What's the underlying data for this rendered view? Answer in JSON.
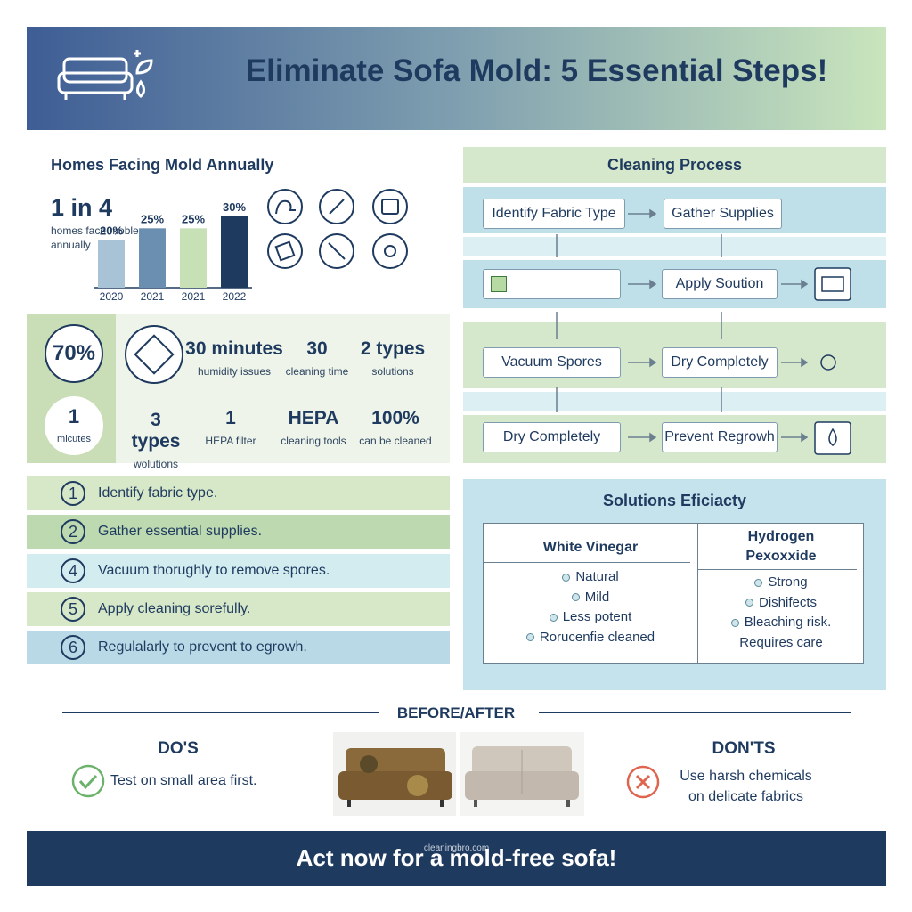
{
  "header": {
    "title": "Eliminate Sofa Mold: 5 Essential Steps!"
  },
  "stats": {
    "title": "Homes Facing Mold Annually",
    "headline": "1 in 4",
    "headline_note": "homes face rnoblems annually",
    "chart": {
      "type": "bar",
      "categories": [
        "2020",
        "2021",
        "2021",
        "2022"
      ],
      "values": [
        20,
        25,
        25,
        30
      ],
      "value_labels": [
        "20%",
        "25%",
        "25%",
        "30%"
      ],
      "colors": [
        "#a9c3d6",
        "#6a8fb0",
        "#c7e0b5",
        "#1f3a5f"
      ]
    }
  },
  "metrics": {
    "circle_main": "70%",
    "circle_small": {
      "value": "1",
      "label": "micutes"
    },
    "tiles": [
      {
        "value": "30 minutes",
        "label": "humidity issues"
      },
      {
        "value": "30",
        "label": "cleaning time"
      },
      {
        "value": "2 types",
        "label": "solutions"
      },
      {
        "value": "3 types",
        "label": "wolutions"
      },
      {
        "value": "1",
        "label": "HEPA filter"
      },
      {
        "value": "HEPA",
        "label": "cleaning tools"
      },
      {
        "value": "100%",
        "label": "can be cleaned"
      }
    ]
  },
  "steps": [
    {
      "num": "1",
      "text": "Identify fabric type."
    },
    {
      "num": "2",
      "text": "Gather essential supplies."
    },
    {
      "num": "4",
      "text": "Vacuum thorughly to remove spores."
    },
    {
      "num": "5",
      "text": "Apply cleaning sorefully."
    },
    {
      "num": "6",
      "text": "Regulalarly to prevent to egrowh."
    }
  ],
  "process": {
    "title": "Cleaning Process",
    "boxes": [
      "Identify Fabric Type",
      "Gather Supplies",
      "Apply Soution",
      "Vacuum Spores",
      "Dry Completely",
      "Dry Completely",
      "Prevent Regrowh"
    ]
  },
  "solutions": {
    "title": "Solutions Eficiacty",
    "columns": [
      {
        "name": "White Vinegar",
        "items": [
          "Natural",
          "Mild",
          "Less potent",
          "Rorucenfie cleaned"
        ]
      },
      {
        "name": "Hydrogen Pexoxxide",
        "items": [
          "Strong",
          "Dishifects",
          "Bleaching risk.",
          "Requires care"
        ]
      }
    ]
  },
  "before_after": {
    "title": "BEFORE/AFTER"
  },
  "dos": {
    "title": "DO'S",
    "text": "Test on small area first."
  },
  "donts": {
    "title": "DON'TS",
    "text": "Use harsh chemicals on delicate fabrics"
  },
  "watermark": "cleaningbro.com",
  "footer": "Act now for a mold-free sofa!"
}
